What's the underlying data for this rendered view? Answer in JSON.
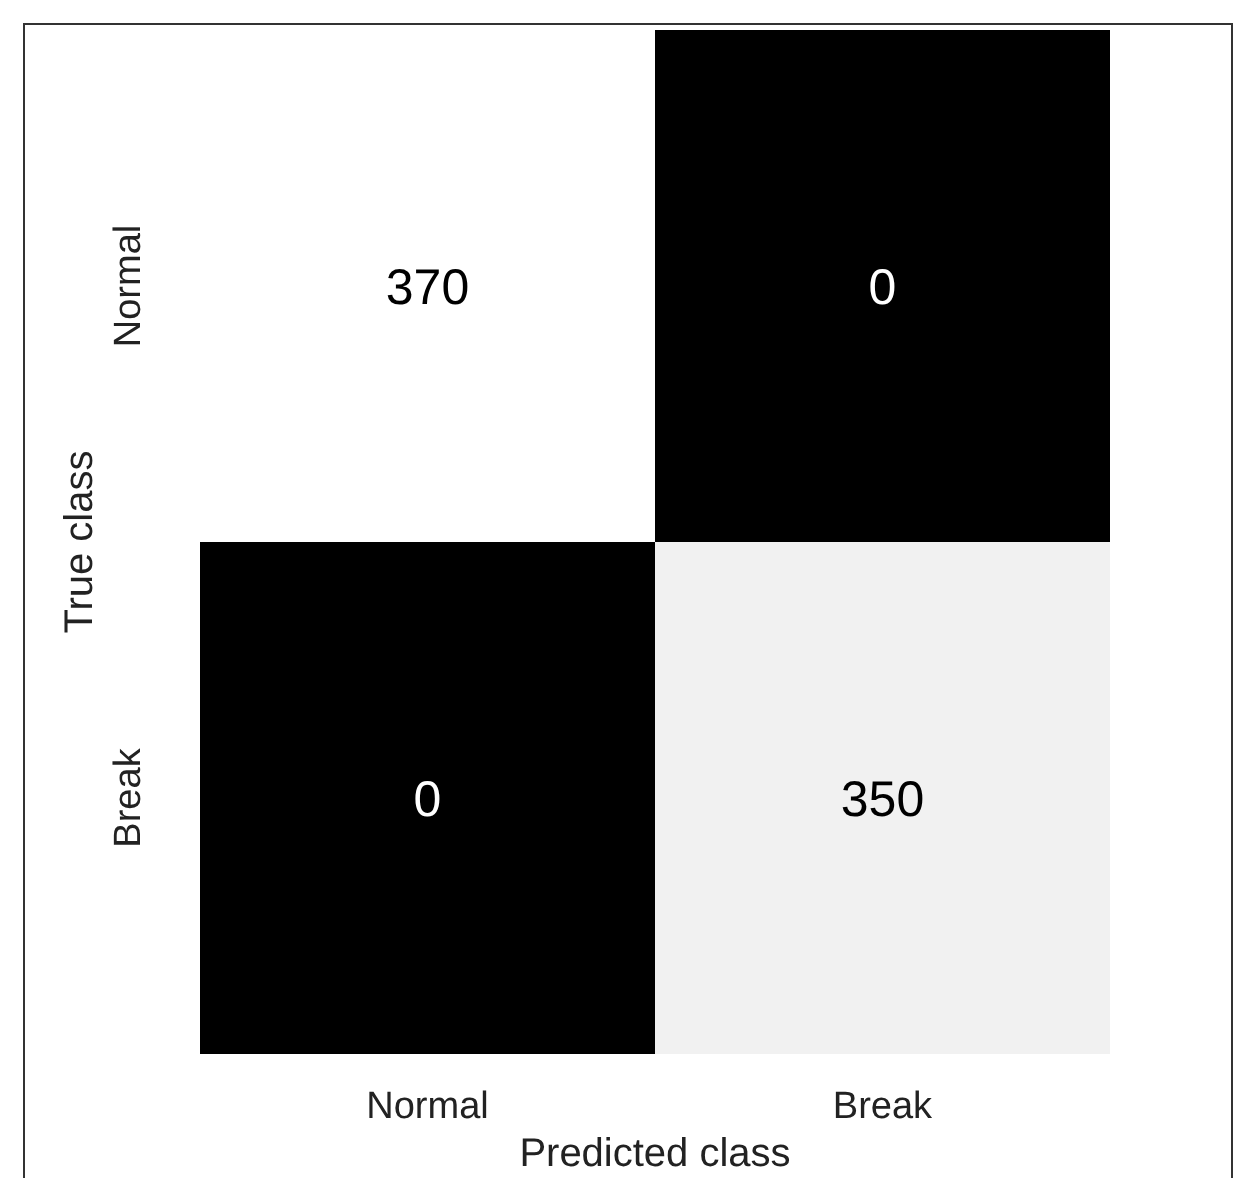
{
  "chart_data": {
    "type": "heatmap",
    "xlabel": "Predicted class",
    "ylabel": "True class",
    "categories": [
      "Normal",
      "Break"
    ],
    "y_categories": [
      "Normal",
      "Break"
    ],
    "cells": [
      [
        370,
        0
      ],
      [
        0,
        350
      ]
    ],
    "data_labels": true
  }
}
